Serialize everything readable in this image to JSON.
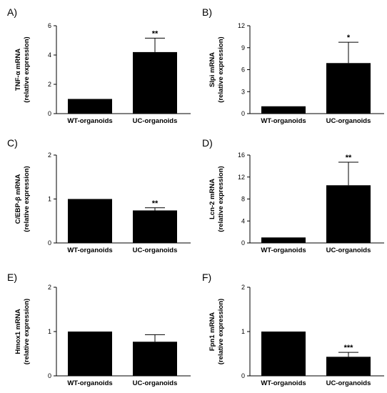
{
  "chart_data": [
    {
      "type": "bar",
      "panel": "A)",
      "categories": [
        "WT-organoids",
        "UC-organoids"
      ],
      "values": [
        1.0,
        4.2
      ],
      "errors": [
        0,
        0.95
      ],
      "significance": [
        "",
        "**"
      ],
      "ylabel": [
        "TNF-α mRNA",
        "(relative expression)"
      ],
      "ylim": [
        0,
        6
      ],
      "yticks": [
        0,
        2,
        4,
        6
      ]
    },
    {
      "type": "bar",
      "panel": "B)",
      "categories": [
        "WT-organoids",
        "UC-organoids"
      ],
      "values": [
        1.0,
        6.9
      ],
      "errors": [
        0,
        2.85
      ],
      "significance": [
        "",
        "*"
      ],
      "ylabel": [
        "Slpi mRNA",
        "(relative expression)"
      ],
      "ylim": [
        0,
        12
      ],
      "yticks": [
        0,
        3,
        6,
        9,
        12
      ]
    },
    {
      "type": "bar",
      "panel": "C)",
      "categories": [
        "WT-organoids",
        "UC-organoids"
      ],
      "values": [
        1.0,
        0.74
      ],
      "errors": [
        0,
        0.06
      ],
      "significance": [
        "",
        "**"
      ],
      "ylabel": [
        "C/EBP-β mRNA",
        "(relative expression)"
      ],
      "ylim": [
        0,
        2
      ],
      "yticks": [
        0,
        1,
        2
      ]
    },
    {
      "type": "bar",
      "panel": "D)",
      "categories": [
        "WT-organoids",
        "UC-organoids"
      ],
      "values": [
        1.0,
        10.5
      ],
      "errors": [
        0,
        4.2
      ],
      "significance": [
        "",
        "**"
      ],
      "ylabel": [
        "Lcn-2 mRNA",
        "(relative expression)"
      ],
      "ylim": [
        0,
        16
      ],
      "yticks": [
        0,
        4,
        8,
        12,
        16
      ]
    },
    {
      "type": "bar",
      "panel": "E)",
      "categories": [
        "WT-organoids",
        "UC-organoids"
      ],
      "values": [
        1.0,
        0.77
      ],
      "errors": [
        0,
        0.16
      ],
      "significance": [
        "",
        ""
      ],
      "ylabel": [
        "Hmox1 mRNA",
        "(relative expression)"
      ],
      "ylim": [
        0,
        2
      ],
      "yticks": [
        0,
        1,
        2
      ]
    },
    {
      "type": "bar",
      "panel": "F)",
      "categories": [
        "WT-organoids",
        "UC-organoids"
      ],
      "values": [
        1.0,
        0.43
      ],
      "errors": [
        0,
        0.1
      ],
      "significance": [
        "",
        "***"
      ],
      "ylabel": [
        "Fpn1 mRNA",
        "(relative expression)"
      ],
      "ylim": [
        0,
        2
      ],
      "yticks": [
        0,
        1,
        2
      ]
    }
  ]
}
